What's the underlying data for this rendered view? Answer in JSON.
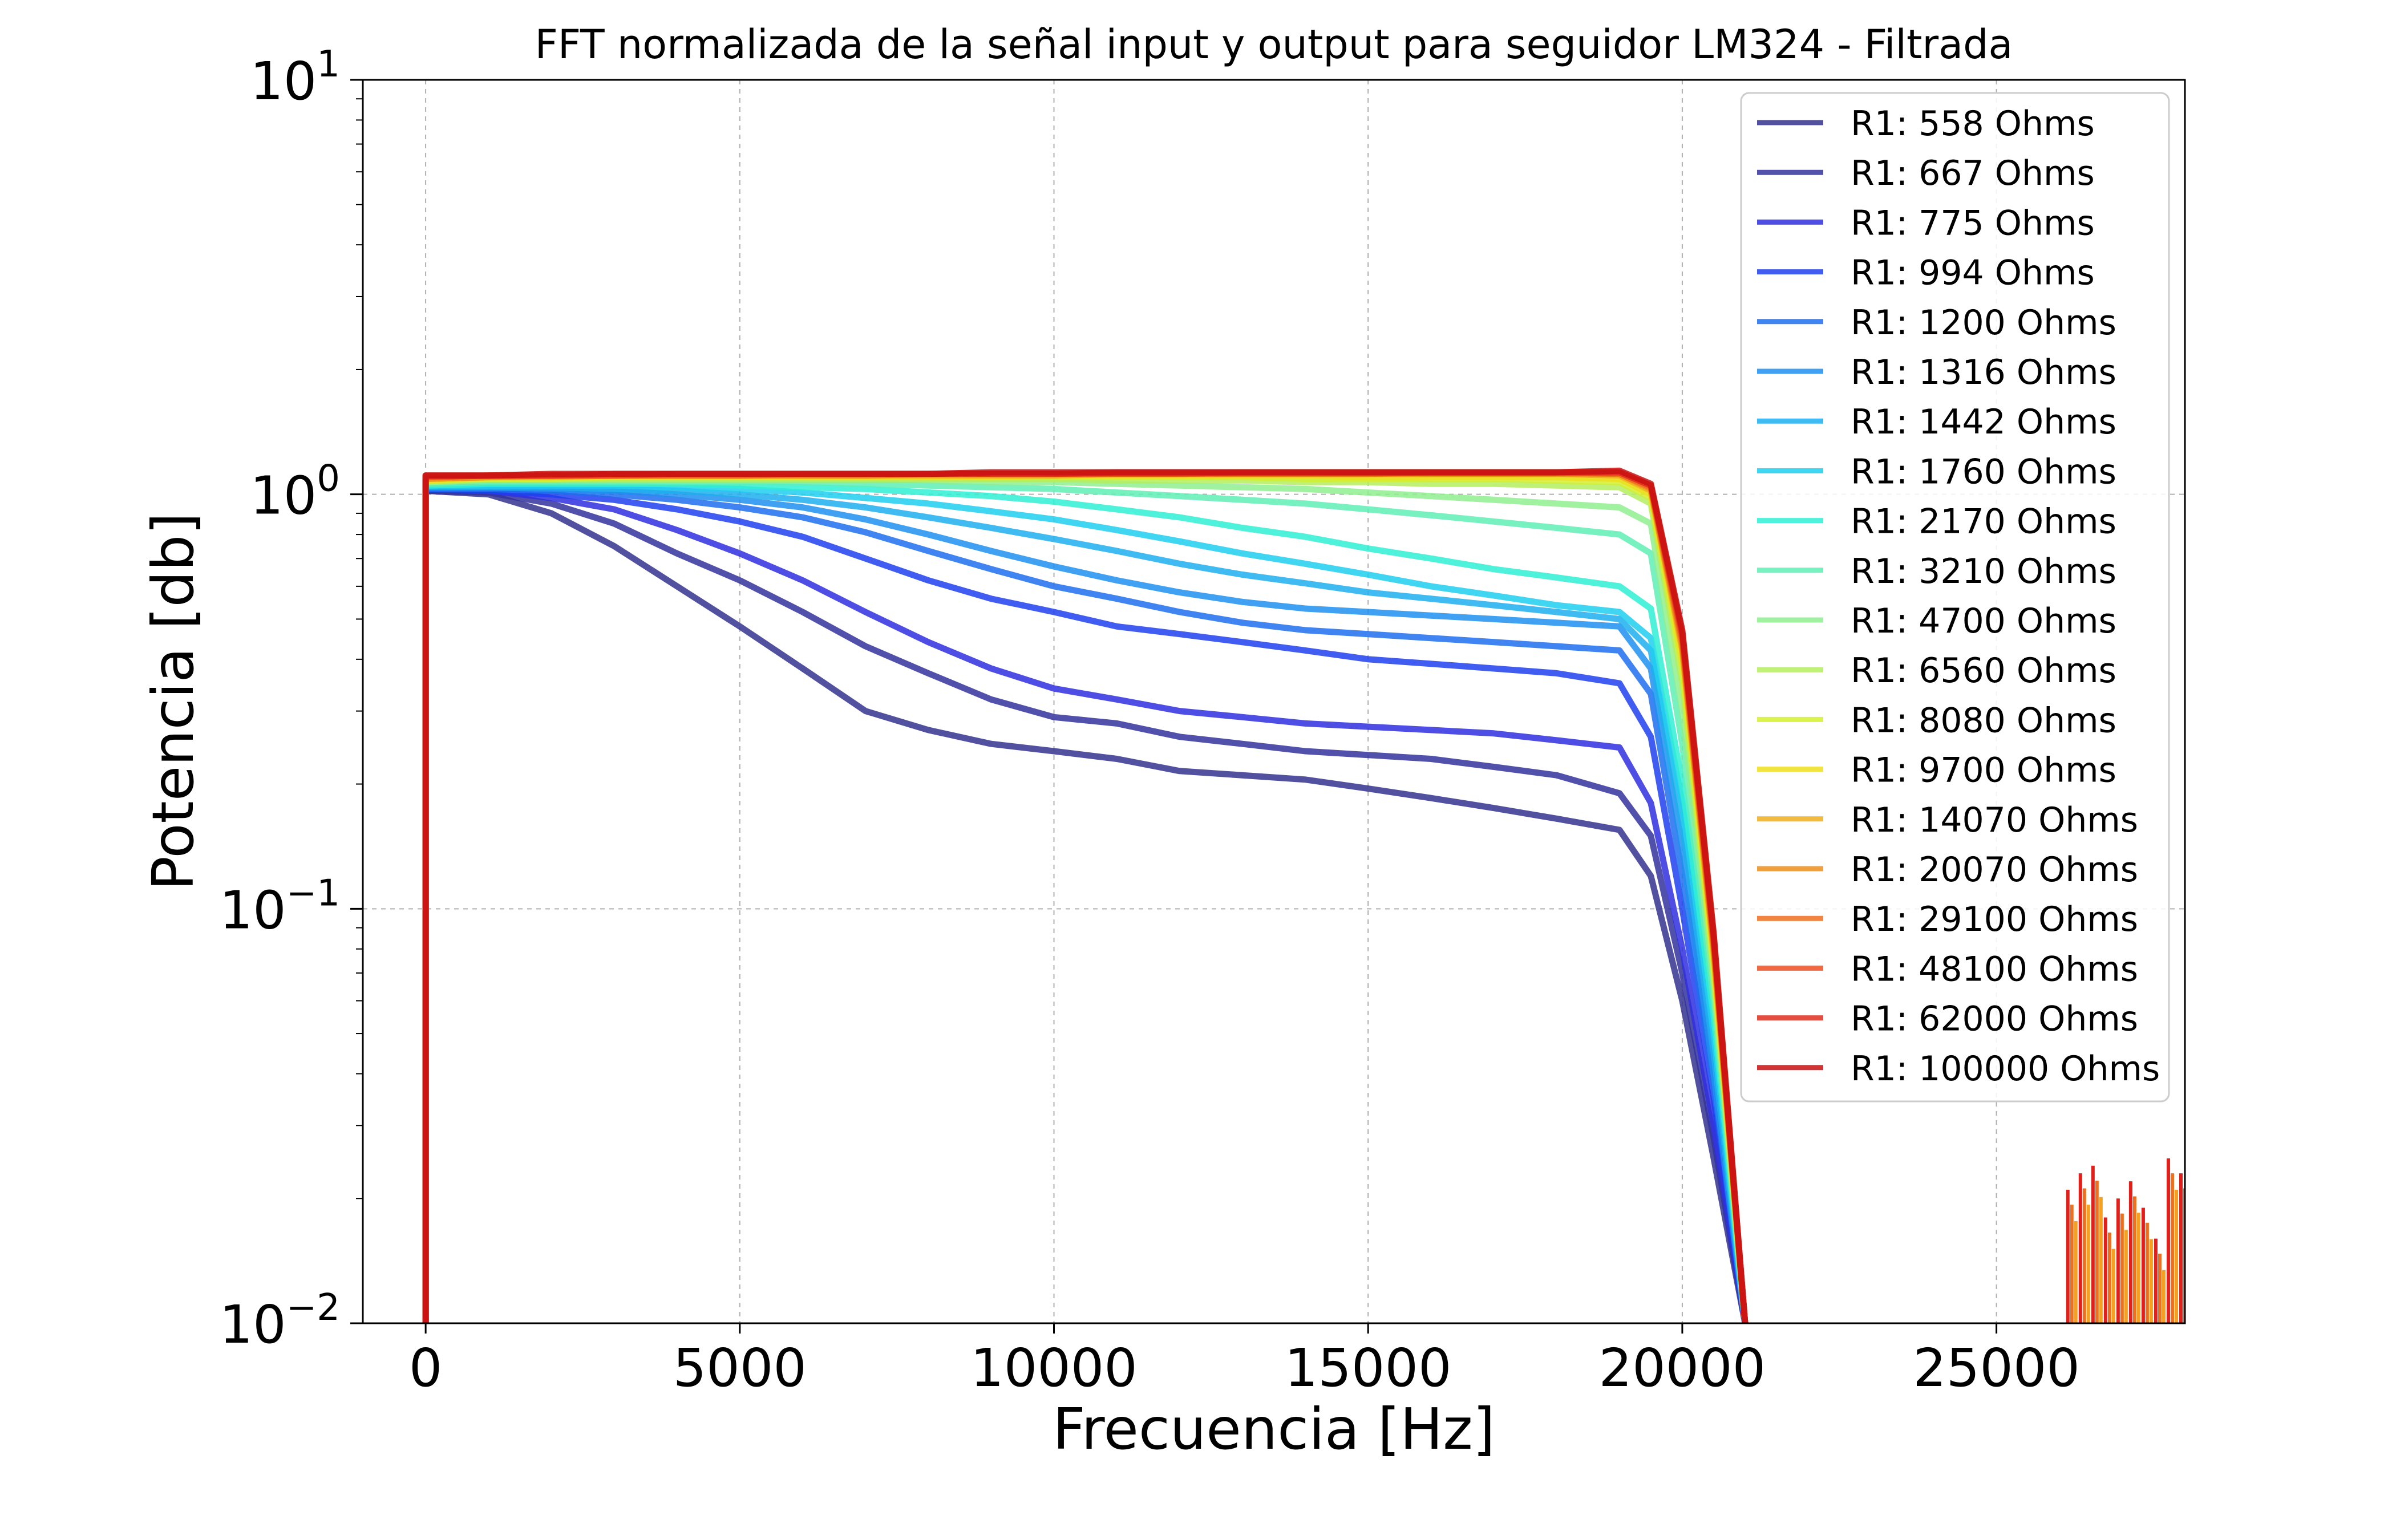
{
  "chart_data": {
    "type": "line",
    "title": "FFT normalizada de la señal input y output para seguidor LM324 - Filtrada",
    "xlabel": "Frecuencia [Hz]",
    "ylabel": "Potencia [db]",
    "xlim": [
      -1000,
      28000
    ],
    "ylim": [
      0.01,
      10
    ],
    "yscale": "log",
    "grid": true,
    "legend_position": "top-right",
    "x_ticks": [
      0,
      5000,
      10000,
      15000,
      20000,
      25000
    ],
    "x_tick_labels": [
      "0",
      "5000",
      "10000",
      "15000",
      "20000",
      "25000"
    ],
    "y_ticks": [
      {
        "value": 10,
        "base": "10",
        "exp": "1"
      },
      {
        "value": 1,
        "base": "10",
        "exp": "0"
      },
      {
        "value": 0.1,
        "base": "10",
        "exp": "−1"
      },
      {
        "value": 0.01,
        "base": "10",
        "exp": "−2"
      }
    ],
    "x": [
      0,
      1000,
      2000,
      3000,
      4000,
      5000,
      6000,
      7000,
      8000,
      9000,
      10000,
      11000,
      12000,
      13000,
      14000,
      15000,
      16000,
      17000,
      18000,
      19000,
      19500,
      20000,
      20500,
      21000
    ],
    "series": [
      {
        "name": "R1: 558 Ohms",
        "color": "#33338f",
        "values": [
          1.02,
          1.0,
          0.9,
          0.75,
          0.6,
          0.48,
          0.38,
          0.3,
          0.27,
          0.25,
          0.24,
          0.23,
          0.215,
          0.21,
          0.205,
          0.195,
          0.185,
          0.175,
          0.165,
          0.155,
          0.12,
          0.06,
          0.025,
          0.01
        ]
      },
      {
        "name": "R1: 667 Ohms",
        "color": "#33339c",
        "values": [
          1.02,
          1.01,
          0.95,
          0.85,
          0.72,
          0.62,
          0.52,
          0.43,
          0.37,
          0.32,
          0.29,
          0.28,
          0.26,
          0.25,
          0.24,
          0.235,
          0.23,
          0.22,
          0.21,
          0.19,
          0.15,
          0.07,
          0.028,
          0.01
        ]
      },
      {
        "name": "R1: 775 Ohms",
        "color": "#2f2fdf",
        "values": [
          1.03,
          1.02,
          0.98,
          0.92,
          0.82,
          0.72,
          0.62,
          0.52,
          0.44,
          0.38,
          0.34,
          0.32,
          0.3,
          0.29,
          0.28,
          0.275,
          0.27,
          0.265,
          0.255,
          0.245,
          0.18,
          0.08,
          0.03,
          0.01
        ]
      },
      {
        "name": "R1: 994 Ohms",
        "color": "#1f3fef",
        "values": [
          1.03,
          1.02,
          1.0,
          0.97,
          0.92,
          0.86,
          0.79,
          0.7,
          0.62,
          0.56,
          0.52,
          0.48,
          0.46,
          0.44,
          0.42,
          0.4,
          0.39,
          0.38,
          0.37,
          0.35,
          0.26,
          0.1,
          0.035,
          0.01
        ]
      },
      {
        "name": "R1: 1200 Ohms",
        "color": "#1f6fef",
        "values": [
          1.03,
          1.03,
          1.02,
          1.0,
          0.97,
          0.93,
          0.88,
          0.81,
          0.73,
          0.66,
          0.6,
          0.56,
          0.52,
          0.49,
          0.47,
          0.46,
          0.45,
          0.44,
          0.43,
          0.42,
          0.33,
          0.12,
          0.038,
          0.01
        ]
      },
      {
        "name": "R1: 1316 Ohms",
        "color": "#1f8fef",
        "values": [
          1.04,
          1.04,
          1.03,
          1.02,
          1.0,
          0.97,
          0.93,
          0.87,
          0.8,
          0.73,
          0.67,
          0.62,
          0.58,
          0.55,
          0.53,
          0.52,
          0.51,
          0.5,
          0.49,
          0.48,
          0.38,
          0.14,
          0.04,
          0.01
        ]
      },
      {
        "name": "R1: 1442 Ohms",
        "color": "#1fafef",
        "values": [
          1.04,
          1.04,
          1.04,
          1.03,
          1.02,
          1.0,
          0.97,
          0.93,
          0.88,
          0.83,
          0.78,
          0.73,
          0.68,
          0.64,
          0.61,
          0.58,
          0.56,
          0.54,
          0.52,
          0.5,
          0.42,
          0.16,
          0.045,
          0.01
        ]
      },
      {
        "name": "R1: 1760 Ohms",
        "color": "#1fcfef",
        "values": [
          1.05,
          1.05,
          1.05,
          1.05,
          1.04,
          1.03,
          1.01,
          0.98,
          0.95,
          0.91,
          0.87,
          0.82,
          0.77,
          0.72,
          0.68,
          0.64,
          0.6,
          0.57,
          0.54,
          0.52,
          0.45,
          0.18,
          0.05,
          0.01
        ]
      },
      {
        "name": "R1: 2170 Ohms",
        "color": "#2fefd4",
        "values": [
          1.05,
          1.06,
          1.06,
          1.06,
          1.06,
          1.05,
          1.04,
          1.03,
          1.01,
          0.99,
          0.96,
          0.92,
          0.88,
          0.83,
          0.79,
          0.74,
          0.7,
          0.66,
          0.63,
          0.6,
          0.53,
          0.2,
          0.055,
          0.01
        ]
      },
      {
        "name": "R1: 3210 Ohms",
        "color": "#5fefb4",
        "values": [
          1.06,
          1.07,
          1.07,
          1.07,
          1.07,
          1.07,
          1.07,
          1.06,
          1.05,
          1.04,
          1.03,
          1.01,
          0.99,
          0.97,
          0.95,
          0.92,
          0.89,
          0.86,
          0.83,
          0.8,
          0.72,
          0.25,
          0.06,
          0.01
        ]
      },
      {
        "name": "R1: 4700 Ohms",
        "color": "#8fef8f",
        "values": [
          1.07,
          1.08,
          1.08,
          1.08,
          1.08,
          1.08,
          1.08,
          1.08,
          1.08,
          1.07,
          1.07,
          1.06,
          1.05,
          1.04,
          1.03,
          1.01,
          0.99,
          0.97,
          0.95,
          0.93,
          0.85,
          0.3,
          0.065,
          0.01
        ]
      },
      {
        "name": "R1: 6560 Ohms",
        "color": "#b4ef5f",
        "values": [
          1.07,
          1.09,
          1.09,
          1.09,
          1.09,
          1.09,
          1.09,
          1.09,
          1.09,
          1.09,
          1.09,
          1.08,
          1.08,
          1.08,
          1.07,
          1.07,
          1.06,
          1.06,
          1.05,
          1.04,
          0.95,
          0.35,
          0.07,
          0.01
        ]
      },
      {
        "name": "R1: 8080 Ohms",
        "color": "#d4ef2f",
        "values": [
          1.08,
          1.09,
          1.09,
          1.1,
          1.1,
          1.1,
          1.1,
          1.1,
          1.1,
          1.1,
          1.1,
          1.1,
          1.1,
          1.1,
          1.09,
          1.09,
          1.09,
          1.09,
          1.08,
          1.07,
          0.98,
          0.38,
          0.072,
          0.01
        ]
      },
      {
        "name": "R1: 9700 Ohms",
        "color": "#efdf1f",
        "values": [
          1.08,
          1.1,
          1.1,
          1.1,
          1.1,
          1.1,
          1.1,
          1.1,
          1.1,
          1.1,
          1.11,
          1.11,
          1.11,
          1.11,
          1.11,
          1.1,
          1.1,
          1.1,
          1.1,
          1.09,
          1.0,
          0.4,
          0.075,
          0.01
        ]
      },
      {
        "name": "R1: 14070 Ohms",
        "color": "#efaf1f",
        "values": [
          1.09,
          1.1,
          1.1,
          1.11,
          1.11,
          1.11,
          1.11,
          1.11,
          1.11,
          1.11,
          1.11,
          1.12,
          1.12,
          1.12,
          1.12,
          1.12,
          1.12,
          1.12,
          1.12,
          1.11,
          1.02,
          0.42,
          0.078,
          0.01
        ]
      },
      {
        "name": "R1: 20070 Ohms",
        "color": "#ef8f1f",
        "values": [
          1.09,
          1.1,
          1.11,
          1.11,
          1.11,
          1.11,
          1.11,
          1.11,
          1.12,
          1.12,
          1.12,
          1.12,
          1.12,
          1.12,
          1.12,
          1.12,
          1.12,
          1.12,
          1.12,
          1.12,
          1.03,
          0.43,
          0.08,
          0.01
        ]
      },
      {
        "name": "R1: 29100 Ohms",
        "color": "#ef6f1f",
        "values": [
          1.1,
          1.11,
          1.11,
          1.11,
          1.11,
          1.11,
          1.12,
          1.12,
          1.12,
          1.12,
          1.12,
          1.12,
          1.12,
          1.12,
          1.12,
          1.12,
          1.13,
          1.13,
          1.13,
          1.12,
          1.04,
          0.44,
          0.082,
          0.01
        ]
      },
      {
        "name": "R1: 48100 Ohms",
        "color": "#ef4f1f",
        "values": [
          1.1,
          1.11,
          1.11,
          1.11,
          1.12,
          1.12,
          1.12,
          1.12,
          1.12,
          1.12,
          1.12,
          1.12,
          1.12,
          1.13,
          1.13,
          1.13,
          1.13,
          1.13,
          1.13,
          1.13,
          1.05,
          0.45,
          0.084,
          0.01
        ]
      },
      {
        "name": "R1: 62000 Ohms",
        "color": "#df2f1f",
        "values": [
          1.11,
          1.11,
          1.11,
          1.12,
          1.12,
          1.12,
          1.12,
          1.12,
          1.12,
          1.12,
          1.12,
          1.13,
          1.13,
          1.13,
          1.13,
          1.13,
          1.13,
          1.13,
          1.13,
          1.13,
          1.05,
          0.46,
          0.085,
          0.01
        ]
      },
      {
        "name": "R1: 100000 Ohms",
        "color": "#c81010",
        "values": [
          1.11,
          1.11,
          1.12,
          1.12,
          1.12,
          1.12,
          1.12,
          1.12,
          1.12,
          1.13,
          1.13,
          1.13,
          1.13,
          1.13,
          1.13,
          1.13,
          1.13,
          1.13,
          1.13,
          1.14,
          1.06,
          0.47,
          0.087,
          0.01
        ]
      }
    ],
    "high_freq_spikes": {
      "colors": [
        "#e0201a",
        "#ef6f1f",
        "#f4a020"
      ],
      "x": [
        26200,
        26400,
        26600,
        26800,
        27000,
        27200,
        27400,
        27600,
        27800,
        28000
      ],
      "y": [
        0.021,
        0.023,
        0.024,
        0.018,
        0.02,
        0.022,
        0.019,
        0.016,
        0.025,
        0.023
      ]
    }
  }
}
